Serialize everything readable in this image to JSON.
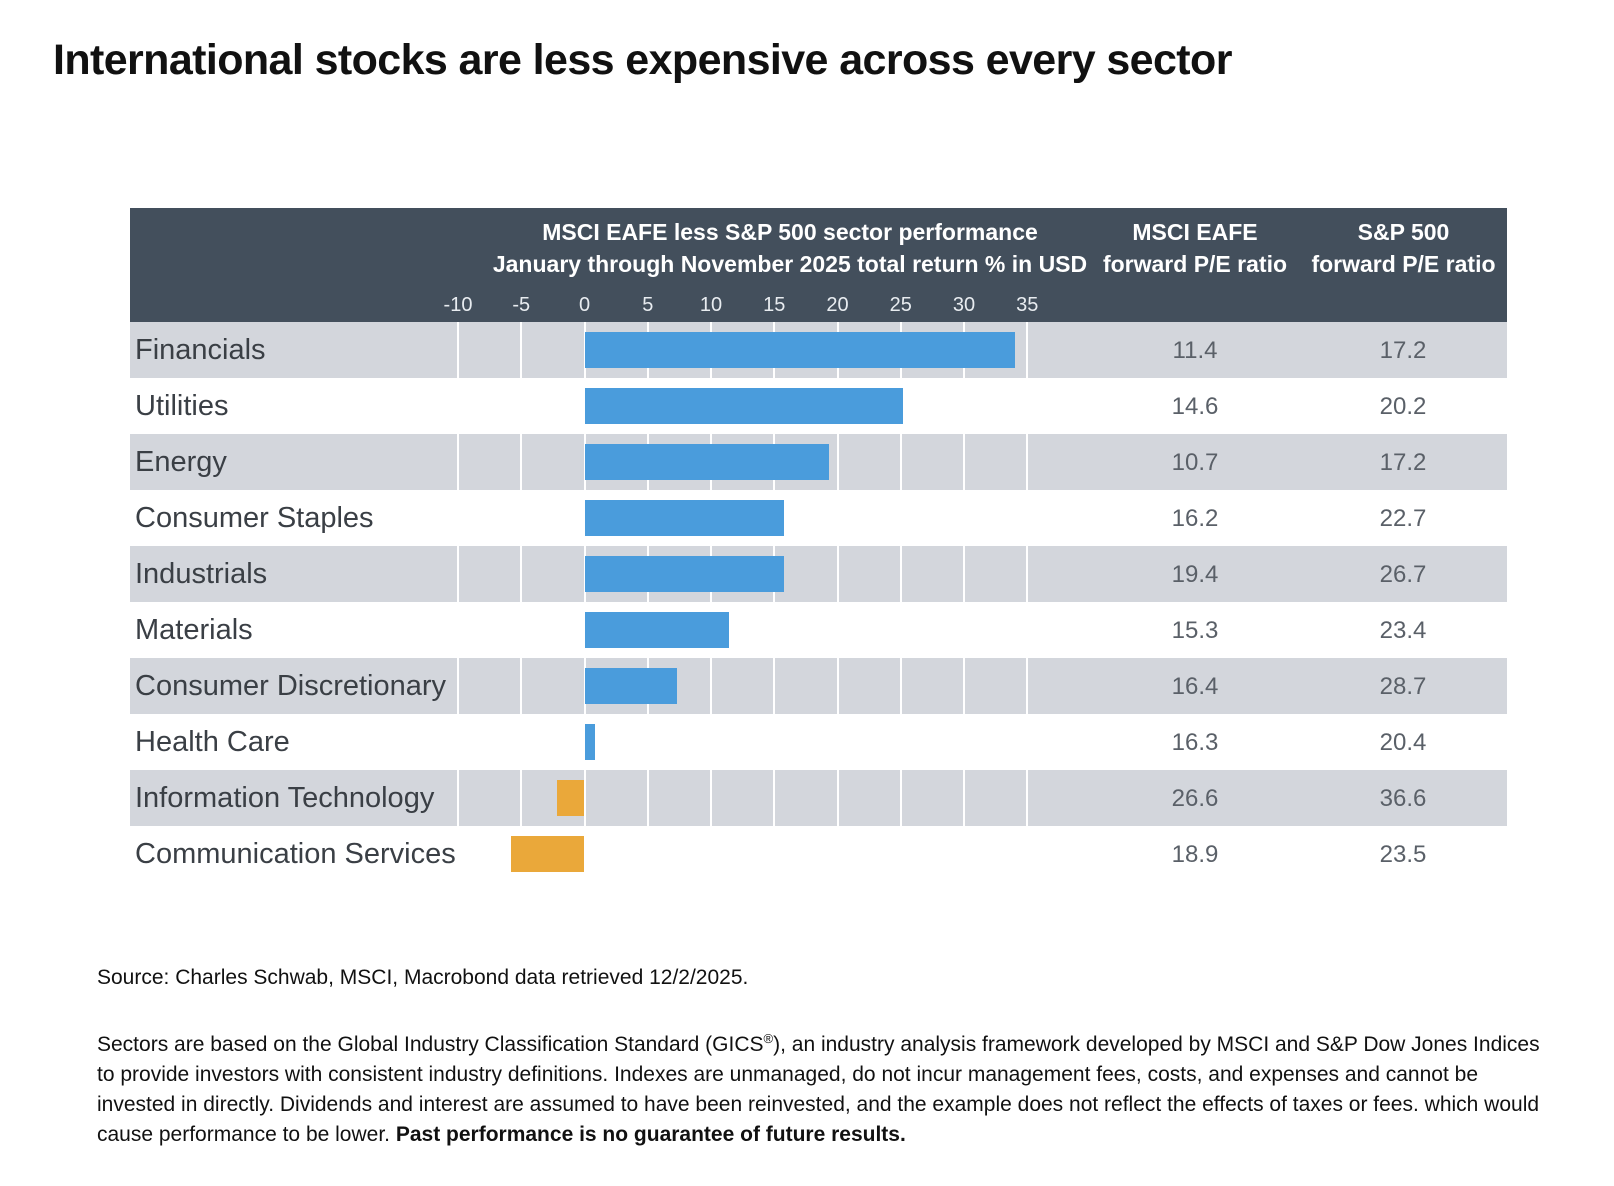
{
  "title": "International stocks are less expensive across every sector",
  "chart_data": {
    "type": "bar",
    "orientation": "horizontal",
    "title_line1": "MSCI EAFE less S&P 500 sector performance",
    "title_line2": "January through November 2025 total return % in USD",
    "col_eafe_line1": "MSCI EAFE",
    "col_eafe_line2": "forward P/E ratio",
    "col_sp_line1": "S&P 500",
    "col_sp_line2": "forward P/E ratio",
    "xlim": [
      -10,
      35
    ],
    "ticks": [
      "-10",
      "-5",
      "0",
      "5",
      "10",
      "15",
      "20",
      "25",
      "30",
      "35"
    ],
    "categories": [
      "Financials",
      "Utilities",
      "Energy",
      "Consumer Staples",
      "Industrials",
      "Materials",
      "Consumer Discretionary",
      "Health Care",
      "Information Technology",
      "Communication Services"
    ],
    "values": [
      34.0,
      25.2,
      19.3,
      15.8,
      15.8,
      11.4,
      7.3,
      0.8,
      -2.2,
      -5.8
    ],
    "eafe_pe": [
      "11.4",
      "14.6",
      "10.7",
      "16.2",
      "19.4",
      "15.3",
      "16.4",
      "16.3",
      "26.6",
      "18.9"
    ],
    "sp_pe": [
      "17.2",
      "20.2",
      "17.2",
      "22.7",
      "26.7",
      "23.4",
      "28.7",
      "20.4",
      "36.6",
      "23.5"
    ],
    "colors": {
      "positive": "#4a9cdc",
      "negative": "#eaa83a",
      "header": "#434f5c",
      "row_shade": "#d3d6dc"
    }
  },
  "source": "Source: Charles Schwab, MSCI, Macrobond data retrieved 12/2/2025.",
  "note": {
    "part1": "Sectors are based on the Global Industry Classification Standard (GICS",
    "sup": "®",
    "part2": "), an industry analysis framework developed by MSCI and S&P Dow Jones Indices to provide investors with consistent industry definitions. Indexes are unmanaged, do not incur management fees, costs, and expenses and cannot be invested in directly. Dividends and interest are assumed to have been reinvested, and the example does not reflect the effects of taxes or fees. which would cause performance to be lower. ",
    "bold": "Past performance is no guarantee of future results."
  }
}
